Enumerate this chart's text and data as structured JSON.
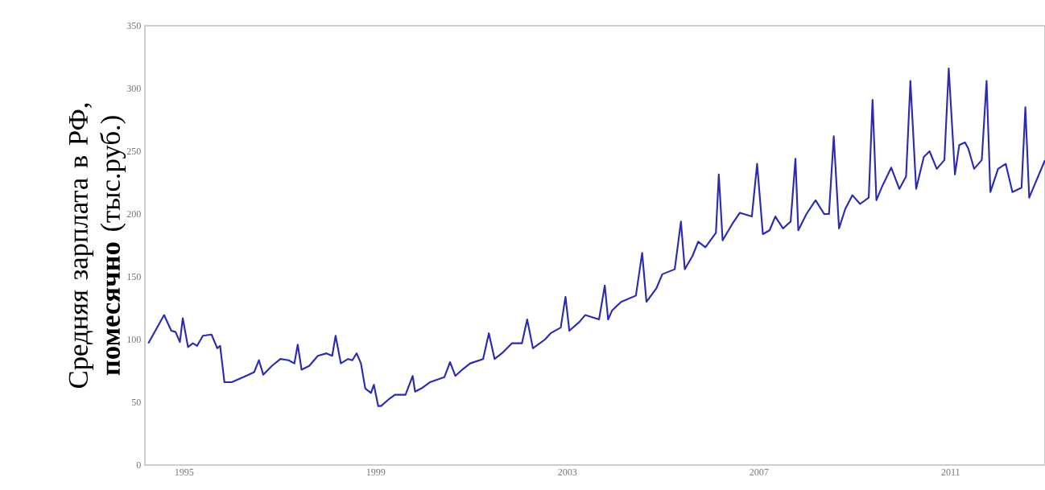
{
  "chart_data": {
    "type": "line",
    "ylabel": "Средняя зарплата в РФ, **помесячно** (тыс.руб.)",
    "xlim": [
      1994.18,
      2012.97
    ],
    "xticks": [
      1995,
      1999,
      2003,
      2007,
      2011
    ],
    "ylim": [
      0,
      350
    ],
    "yticks": [
      0,
      50,
      100,
      150,
      200,
      250,
      300,
      350
    ],
    "series": [
      {
        "color": "#2b2bb0",
        "x": [
          1994.25,
          1994.58,
          1994.73,
          1994.82,
          1994.91,
          1994.97,
          1995.08,
          1995.18,
          1995.27,
          1995.39,
          1995.57,
          1995.69,
          1995.75,
          1995.84,
          1995.99,
          1996.29,
          1996.46,
          1996.56,
          1996.65,
          1996.83,
          1997.01,
          1997.18,
          1997.3,
          1997.37,
          1997.45,
          1997.61,
          1997.79,
          1997.97,
          1998.09,
          1998.16,
          1998.27,
          1998.42,
          1998.51,
          1998.6,
          1998.69,
          1998.78,
          1998.9,
          1998.96,
          1999.05,
          1999.11,
          1999.29,
          1999.4,
          1999.62,
          1999.77,
          1999.82,
          1999.95,
          2000.13,
          2000.43,
          2000.55,
          2000.66,
          2000.79,
          2000.97,
          2001.24,
          2001.36,
          2001.48,
          2001.63,
          2001.84,
          2002.05,
          2002.16,
          2002.28,
          2002.53,
          2002.65,
          2002.86,
          2002.96,
          2003.04,
          2003.25,
          2003.37,
          2003.66,
          2003.78,
          2003.85,
          2003.93,
          2004.12,
          2004.43,
          2004.56,
          2004.65,
          2004.86,
          2004.98,
          2005.24,
          2005.37,
          2005.45,
          2005.61,
          2005.73,
          2005.88,
          2006.1,
          2006.16,
          2006.24,
          2006.44,
          2006.6,
          2006.85,
          2006.96,
          2007.08,
          2007.22,
          2007.34,
          2007.5,
          2007.66,
          2007.76,
          2007.82,
          2007.99,
          2008.18,
          2008.36,
          2008.46,
          2008.56,
          2008.67,
          2008.8,
          2008.95,
          2009.11,
          2009.29,
          2009.37,
          2009.45,
          2009.57,
          2009.76,
          2009.93,
          2010.07,
          2010.16,
          2010.28,
          2010.44,
          2010.56,
          2010.71,
          2010.87,
          2010.96,
          2011.09,
          2011.18,
          2011.3,
          2011.37,
          2011.49,
          2011.65,
          2011.75,
          2011.83,
          2011.99,
          2012.15,
          2012.29,
          2012.48,
          2012.56,
          2012.64,
          2012.97
        ],
        "values": [
          97,
          119.5,
          107,
          106,
          98,
          117,
          94,
          97,
          95,
          103,
          104,
          93,
          95,
          66,
          66,
          71,
          74,
          83.5,
          72,
          79,
          84.5,
          83.5,
          81,
          96,
          76,
          79,
          87,
          89,
          87,
          103,
          81,
          84.5,
          83.5,
          89,
          81,
          61,
          57.5,
          64,
          47,
          47,
          53,
          56,
          56,
          71,
          58.5,
          61,
          66,
          70,
          82,
          71,
          75.5,
          81,
          84.5,
          105,
          84.5,
          89,
          97,
          97,
          116,
          93,
          100,
          105,
          109.5,
          134,
          107,
          114,
          119.5,
          116,
          143,
          116,
          123,
          130,
          135,
          169,
          130,
          141,
          152,
          156,
          194,
          156,
          166.5,
          178,
          173.5,
          185,
          231.5,
          179,
          192,
          201,
          198,
          240,
          184,
          187,
          198,
          188.5,
          194,
          244,
          187,
          200,
          211,
          200,
          200,
          262,
          188.5,
          204,
          215,
          208,
          213,
          291,
          211,
          222,
          237,
          220,
          230,
          306,
          220,
          245.5,
          250,
          236,
          243,
          316,
          231.5,
          255,
          257,
          252,
          236,
          243,
          306,
          217.5,
          236,
          240,
          217.5,
          221,
          285,
          213,
          243
        ]
      }
    ]
  }
}
